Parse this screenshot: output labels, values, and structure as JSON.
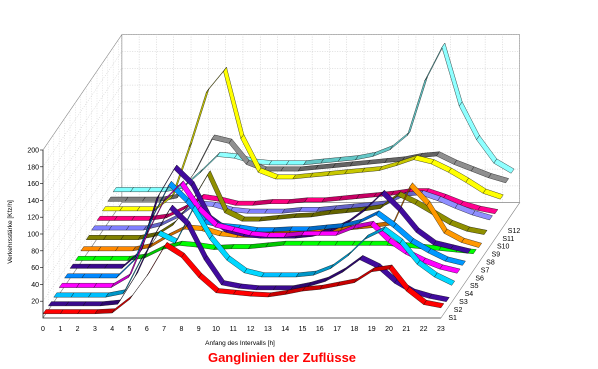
{
  "chart_data": {
    "type": "ribbon3d",
    "title": "Ganglinien der Zuflüsse",
    "title_color": "#ff0000",
    "xlabel": "Anfang des Intervalls [h]",
    "ylabel": "Verkehrsstärke [Kfz/h]",
    "x": [
      0,
      1,
      2,
      3,
      4,
      5,
      6,
      7,
      8,
      9,
      10,
      11,
      12,
      13,
      14,
      15,
      16,
      17,
      18,
      19,
      20,
      21,
      22,
      23
    ],
    "x_tick_labels": [
      "0",
      "1",
      "2",
      "3",
      "4",
      "5",
      "6",
      "7",
      "8",
      "9",
      "10",
      "11",
      "12",
      "13",
      "14",
      "15",
      "16",
      "17",
      "18",
      "19",
      "20",
      "21",
      "22",
      "23"
    ],
    "y_tick_labels": [
      "20",
      "40",
      "60",
      "80",
      "100",
      "120",
      "140",
      "160",
      "180",
      "200"
    ],
    "ylim": [
      0,
      200
    ],
    "grid": true,
    "series": [
      {
        "name": "S1",
        "color": "#ff0000",
        "values": [
          5,
          5,
          5,
          5,
          6,
          22,
          50,
          85,
          72,
          48,
          30,
          28,
          26,
          25,
          28,
          32,
          34,
          38,
          42,
          55,
          58,
          32,
          16,
          12
        ]
      },
      {
        "name": "S2",
        "color": "#3a0a8c",
        "values": [
          5,
          5,
          5,
          5,
          7,
          40,
          85,
          120,
          100,
          60,
          30,
          26,
          24,
          24,
          24,
          28,
          34,
          45,
          60,
          50,
          32,
          20,
          14,
          10
        ]
      },
      {
        "name": "S3",
        "color": "#00c0ff",
        "values": [
          6,
          6,
          6,
          6,
          10,
          50,
          80,
          70,
          110,
          75,
          50,
          35,
          30,
          30,
          30,
          32,
          40,
          55,
          75,
          85,
          70,
          45,
          30,
          20
        ]
      },
      {
        "name": "S4",
        "color": "#ff00ff",
        "values": [
          8,
          8,
          8,
          8,
          20,
          70,
          110,
          130,
          100,
          80,
          75,
          70,
          68,
          68,
          70,
          70,
          70,
          78,
          82,
          62,
          48,
          38,
          30,
          25
        ]
      },
      {
        "name": "S5",
        "color": "#0088ff",
        "values": [
          10,
          10,
          10,
          10,
          30,
          80,
          120,
          100,
          75,
          70,
          68,
          65,
          65,
          66,
          66,
          68,
          70,
          75,
          85,
          70,
          52,
          40,
          30,
          25
        ]
      },
      {
        "name": "S6",
        "color": "#3a0a8c",
        "values": [
          12,
          12,
          12,
          12,
          30,
          95,
          130,
          110,
          70,
          55,
          50,
          48,
          48,
          48,
          50,
          55,
          65,
          80,
          100,
          80,
          55,
          40,
          35,
          30
        ]
      },
      {
        "name": "S7",
        "color": "#00ff00",
        "values": [
          12,
          12,
          12,
          12,
          15,
          25,
          30,
          28,
          25,
          26,
          26,
          28,
          30,
          30,
          30,
          30,
          30,
          30,
          30,
          28,
          26,
          24,
          22,
          20
        ]
      },
      {
        "name": "S8",
        "color": "#ff8800",
        "values": [
          14,
          14,
          14,
          14,
          18,
          30,
          40,
          38,
          32,
          30,
          30,
          32,
          34,
          36,
          36,
          38,
          40,
          42,
          45,
          90,
          68,
          35,
          24,
          18
        ]
      },
      {
        "name": "S9",
        "color": "#808000",
        "values": [
          18,
          18,
          18,
          18,
          22,
          35,
          60,
          95,
          50,
          40,
          40,
          42,
          44,
          45,
          48,
          50,
          52,
          55,
          70,
          60,
          48,
          36,
          28,
          24
        ]
      },
      {
        "name": "S10",
        "color": "#8080ff",
        "values": [
          20,
          20,
          20,
          20,
          25,
          35,
          50,
          48,
          42,
          40,
          40,
          40,
          42,
          42,
          44,
          46,
          48,
          50,
          60,
          62,
          55,
          46,
          38,
          32
        ]
      },
      {
        "name": "S11",
        "color": "#ff0080",
        "values": [
          22,
          22,
          22,
          22,
          25,
          35,
          48,
          45,
          40,
          40,
          42,
          42,
          44,
          44,
          46,
          48,
          50,
          52,
          55,
          55,
          48,
          40,
          34,
          30
        ]
      },
      {
        "name": "S12",
        "color": "#ffff00",
        "values": [
          24,
          24,
          24,
          24,
          40,
          100,
          165,
          190,
          110,
          70,
          62,
          62,
          64,
          66,
          68,
          70,
          72,
          78,
          85,
          80,
          70,
          58,
          45,
          38
        ]
      },
      {
        "name": "",
        "color": "#808080",
        "values": [
          26,
          26,
          26,
          26,
          30,
          60,
          100,
          95,
          70,
          62,
          62,
          62,
          64,
          66,
          68,
          70,
          72,
          74,
          78,
          80,
          70,
          62,
          54,
          48
        ]
      },
      {
        "name": "",
        "color": "#80ffff",
        "values": [
          28,
          28,
          28,
          28,
          32,
          50,
          70,
          68,
          62,
          60,
          60,
          60,
          62,
          64,
          66,
          70,
          78,
          95,
          160,
          200,
          130,
          90,
          62,
          50
        ]
      }
    ]
  }
}
